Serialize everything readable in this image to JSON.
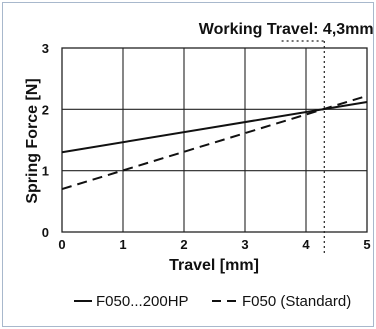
{
  "chart_data": {
    "type": "line",
    "xlabel": "Travel [mm]",
    "ylabel": "Spring Force [N]",
    "xlim": [
      0,
      5
    ],
    "ylim": [
      0,
      3
    ],
    "x_ticks": [
      "0",
      "1",
      "2",
      "3",
      "4",
      "5"
    ],
    "y_ticks": [
      "0",
      "1",
      "2",
      "3"
    ],
    "grid": true,
    "annotation": {
      "text": "Working Travel: 4,3mm",
      "x": 4.3
    },
    "series": [
      {
        "name": "F050...200HP",
        "style": "solid",
        "color": "#111111",
        "x": [
          0,
          5
        ],
        "y": [
          1.3,
          2.12
        ]
      },
      {
        "name": "F050 (Standard)",
        "style": "dashed",
        "color": "#111111",
        "x": [
          0,
          5
        ],
        "y": [
          0.7,
          2.22
        ]
      }
    ],
    "legend_placement": "bottom"
  }
}
